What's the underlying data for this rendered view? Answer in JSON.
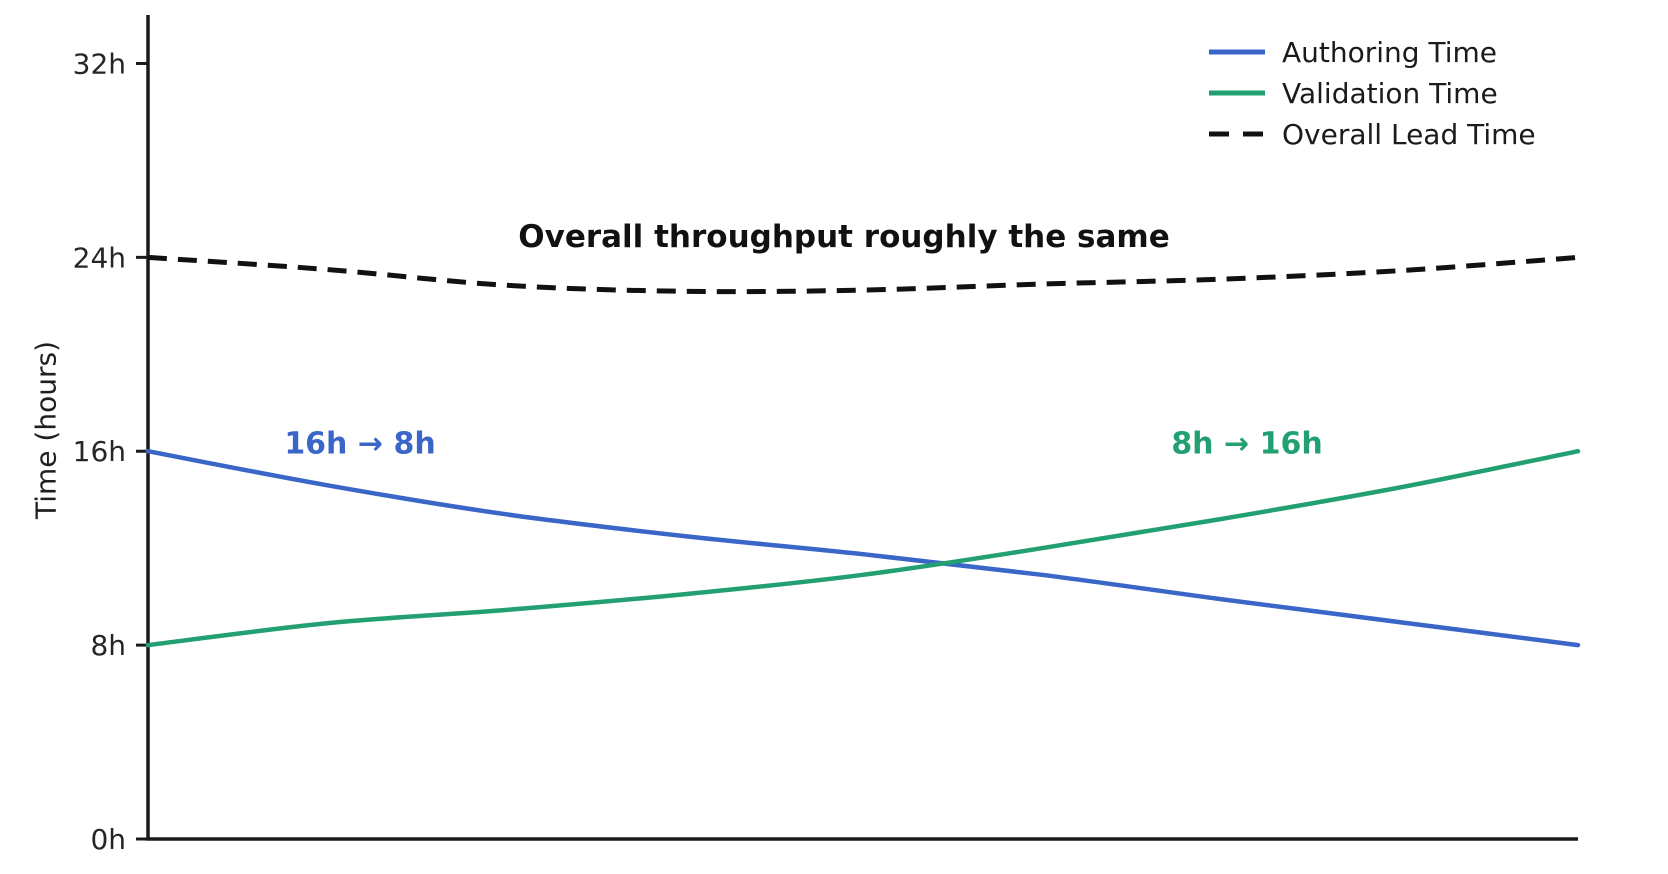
{
  "chart_data": {
    "type": "line",
    "title": "",
    "xlabel": "",
    "ylabel": "Time (hours)",
    "ylim": [
      0,
      34
    ],
    "grid": false,
    "legend_position": "top-right",
    "yticks": [
      {
        "label": "0h",
        "value": 0
      },
      {
        "label": "8h",
        "value": 8
      },
      {
        "label": "16h",
        "value": 16
      },
      {
        "label": "24h",
        "value": 24
      },
      {
        "label": "32h",
        "value": 32
      }
    ],
    "x": [
      0,
      0.125,
      0.25,
      0.375,
      0.5,
      0.625,
      0.75,
      0.875,
      1
    ],
    "series": [
      {
        "name": "Authoring Time",
        "style": "solid",
        "color": "#3a66c8",
        "values": [
          16,
          14.6,
          13.4,
          12.5,
          11.75,
          10.9,
          9.9,
          8.95,
          8
        ]
      },
      {
        "name": "Validation Time",
        "style": "solid",
        "color": "#23a072",
        "values": [
          8,
          8.9,
          9.45,
          10.1,
          10.9,
          12.0,
          13.2,
          14.5,
          16
        ]
      },
      {
        "name": "Overall Lead Time",
        "style": "dashed",
        "color": "#111111",
        "values": [
          24,
          23.5,
          22.85,
          22.6,
          22.65,
          22.9,
          23.1,
          23.45,
          24
        ]
      }
    ],
    "annotations": [
      {
        "id": "overall",
        "text": "Overall throughput roughly the same",
        "color": "#111111"
      },
      {
        "id": "authoring",
        "text": "16h → 8h",
        "color": "#3a66c8"
      },
      {
        "id": "validation",
        "text": "8h → 16h",
        "color": "#23a072"
      }
    ],
    "axis_color": "#1a1a1a",
    "tick_label_color": "#262626"
  }
}
